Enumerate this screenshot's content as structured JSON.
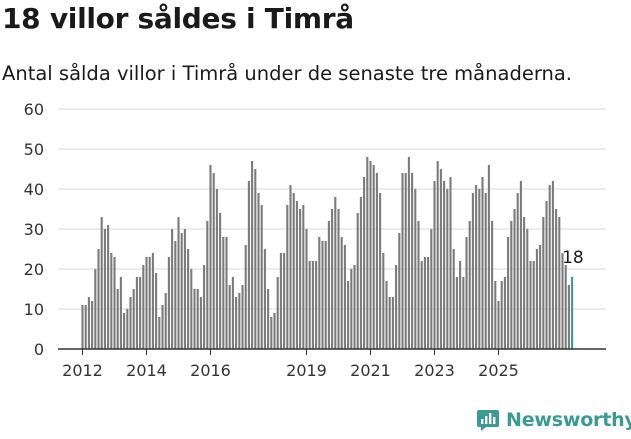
{
  "chart_data": {
    "type": "bar",
    "title": "18 villor såldes i Timrå",
    "subtitle": "Antal sålda villor i Timrå under de senaste tre månaderna.",
    "xlabel": "",
    "ylabel": "",
    "ylim": [
      0,
      60
    ],
    "yticks": [
      0,
      10,
      20,
      30,
      40,
      50,
      60
    ],
    "xticks": [
      {
        "label": "2012",
        "index": 0
      },
      {
        "label": "2014",
        "index": 20
      },
      {
        "label": "2016",
        "index": 40
      },
      {
        "label": "2019",
        "index": 70
      },
      {
        "label": "2021",
        "index": 90
      },
      {
        "label": "2023",
        "index": 110
      },
      {
        "label": "2025",
        "index": 130
      }
    ],
    "start": "2012",
    "values": [
      11,
      11,
      13,
      12,
      20,
      25,
      33,
      30,
      31,
      24,
      23,
      15,
      18,
      9,
      10,
      13,
      15,
      18,
      18,
      21,
      23,
      23,
      24,
      19,
      8,
      11,
      14,
      23,
      30,
      27,
      33,
      29,
      30,
      25,
      20,
      15,
      15,
      13,
      21,
      32,
      46,
      44,
      40,
      34,
      28,
      28,
      16,
      18,
      13,
      14,
      16,
      26,
      42,
      47,
      45,
      39,
      36,
      25,
      15,
      8,
      9,
      18,
      24,
      24,
      36,
      41,
      39,
      37,
      35,
      36,
      30,
      22,
      22,
      22,
      28,
      27,
      27,
      32,
      35,
      38,
      35,
      28,
      26,
      17,
      20,
      21,
      34,
      38,
      43,
      48,
      47,
      46,
      44,
      39,
      24,
      17,
      13,
      13,
      21,
      29,
      44,
      44,
      48,
      44,
      40,
      32,
      22,
      23,
      23,
      30,
      42,
      47,
      45,
      42,
      40,
      43,
      25,
      18,
      22,
      18,
      28,
      32,
      39,
      41,
      40,
      43,
      39,
      46,
      32,
      17,
      12,
      17,
      18,
      28,
      32,
      35,
      39,
      42,
      33,
      30,
      22,
      22,
      25,
      26,
      33,
      37,
      41,
      42,
      35,
      33,
      24,
      21,
      16,
      18
    ],
    "highlight": {
      "index": 153,
      "value": 18,
      "label": "18"
    },
    "colors": {
      "bar": "#7b7b7b",
      "highlight": "#3a9b95",
      "grid": "#d9d9d9",
      "axis": "#333333"
    }
  },
  "brand": {
    "name": "Newsworthy",
    "color": "#3a9b95"
  }
}
